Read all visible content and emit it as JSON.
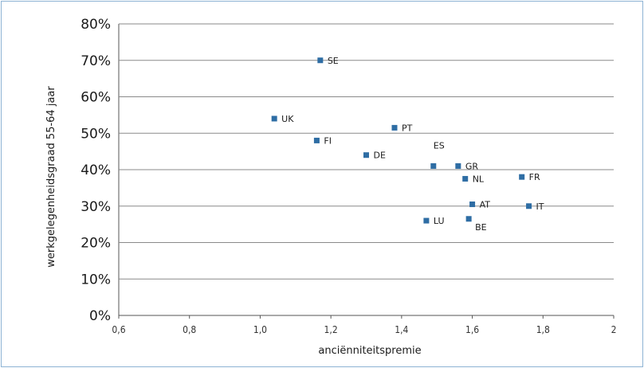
{
  "chart_data": {
    "type": "scatter",
    "xlabel": "anciënniteitspremie",
    "ylabel": "werkgelegenheidsgraad 55-64 jaar",
    "xlim": [
      0.6,
      2.0
    ],
    "ylim": [
      0,
      80
    ],
    "x_ticks": [
      "0,6",
      "0,8",
      "1,0",
      "1,2",
      "1,4",
      "1,6",
      "1,8",
      "2"
    ],
    "x_tick_values": [
      0.6,
      0.8,
      1.0,
      1.2,
      1.4,
      1.6,
      1.8,
      2.0
    ],
    "y_ticks": [
      "0%",
      "10%",
      "20%",
      "30%",
      "40%",
      "50%",
      "60%",
      "70%",
      "80%"
    ],
    "y_tick_values": [
      0,
      10,
      20,
      30,
      40,
      50,
      60,
      70,
      80
    ],
    "grid": "horizontal",
    "marker_color": "#2e6da4",
    "points": [
      {
        "label": "SE",
        "x": 1.17,
        "y": 70
      },
      {
        "label": "UK",
        "x": 1.04,
        "y": 54
      },
      {
        "label": "PT",
        "x": 1.38,
        "y": 51.5
      },
      {
        "label": "FI",
        "x": 1.16,
        "y": 48
      },
      {
        "label": "DE",
        "x": 1.3,
        "y": 44
      },
      {
        "label": "ES",
        "x": 1.49,
        "y": 41
      },
      {
        "label": "GR",
        "x": 1.56,
        "y": 41
      },
      {
        "label": "FR",
        "x": 1.74,
        "y": 38
      },
      {
        "label": "NL",
        "x": 1.58,
        "y": 37.5
      },
      {
        "label": "AT",
        "x": 1.6,
        "y": 30.5
      },
      {
        "label": "IT",
        "x": 1.76,
        "y": 30
      },
      {
        "label": "LU",
        "x": 1.47,
        "y": 26
      },
      {
        "label": "BE",
        "x": 1.59,
        "y": 26.5
      }
    ]
  }
}
